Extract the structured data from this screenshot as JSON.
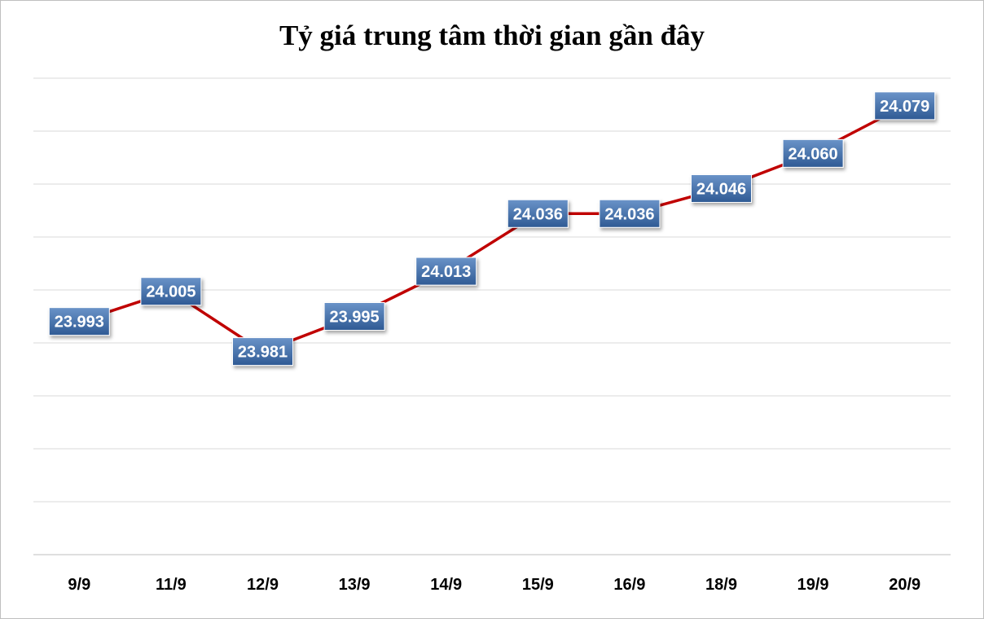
{
  "chart_data": {
    "type": "line",
    "title": "Tỷ giá trung tâm thời gian gần đây",
    "categories": [
      "9/9",
      "11/9",
      "12/9",
      "13/9",
      "14/9",
      "15/9",
      "16/9",
      "18/9",
      "19/9",
      "20/9"
    ],
    "values": [
      23993,
      24005,
      23981,
      23995,
      24013,
      24036,
      24036,
      24046,
      24060,
      24079
    ],
    "value_labels": [
      "23.993",
      "24.005",
      "23.981",
      "23.995",
      "24.013",
      "24.036",
      "24.036",
      "24.046",
      "24.060",
      "24.079"
    ],
    "xlabel": "",
    "ylabel": "",
    "ylim": [
      23900,
      24090
    ],
    "grid": true,
    "line_color": "#c00000",
    "label_box_color": "#4a74aa"
  }
}
